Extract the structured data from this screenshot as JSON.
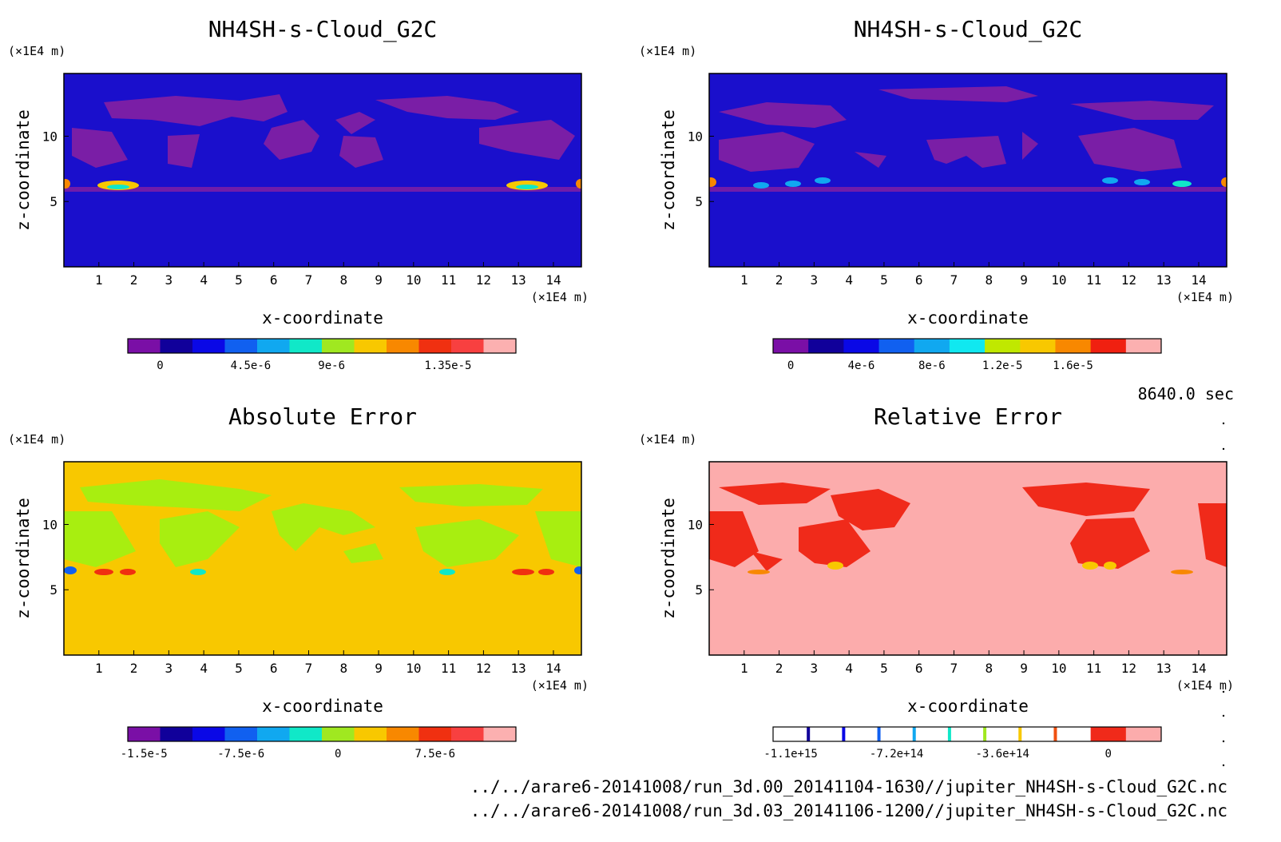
{
  "figure": {
    "timestamp": "8640.0 sec",
    "files": [
      "../../arare6-20141008/run_3d.00_20141104-1630//jupiter_NH4SH-s-Cloud_G2C.nc",
      "../../arare6-20141008/run_3d.03_20141106-1200//jupiter_NH4SH-s-Cloud_G2C.nc"
    ]
  },
  "chart_data": [
    {
      "type": "heatmap",
      "title": "NH4SH-s-Cloud_G2C",
      "xlabel": "x-coordinate",
      "ylabel": "z-coordinate",
      "xunit": "(×1E4 m)",
      "yunit": "(×1E4 m)",
      "xlim": [
        0,
        14.8
      ],
      "ylim": [
        0,
        14.8
      ],
      "xticks": [
        "1",
        "2",
        "3",
        "4",
        "5",
        "6",
        "7",
        "8",
        "9",
        "10",
        "11",
        "12",
        "13",
        "14"
      ],
      "yticks": [
        "5",
        "10"
      ],
      "background": "#1a0fcc",
      "patch_color": "#7a1ea6",
      "colorbar": {
        "colors": [
          "#7a0fa6",
          "#10009a",
          "#0a08e6",
          "#1060f0",
          "#10a8f0",
          "#10e8c8",
          "#a0e820",
          "#f8c800",
          "#f88800",
          "#f03010",
          "#f84040",
          "#fcb0b0"
        ],
        "tick_labels": [
          "0",
          "4.5e-6",
          "9e-6",
          "1.35e-5"
        ],
        "tick_index": [
          1,
          3.8,
          6.3,
          9.9
        ]
      }
    },
    {
      "type": "heatmap",
      "title": "NH4SH-s-Cloud_G2C",
      "xlabel": "x-coordinate",
      "ylabel": "z-coordinate",
      "xunit": "(×1E4 m)",
      "yunit": "(×1E4 m)",
      "xlim": [
        0,
        14.8
      ],
      "ylim": [
        0,
        14.8
      ],
      "xticks": [
        "1",
        "2",
        "3",
        "4",
        "5",
        "6",
        "7",
        "8",
        "9",
        "10",
        "11",
        "12",
        "13",
        "14"
      ],
      "yticks": [
        "5",
        "10"
      ],
      "background": "#1a0fcc",
      "patch_color": "#7a1ea6",
      "colorbar": {
        "colors": [
          "#7a0fa6",
          "#10009a",
          "#0a08e6",
          "#1060f0",
          "#10a8f0",
          "#10e8f0",
          "#c0e800",
          "#f8c800",
          "#f88800",
          "#f02010",
          "#fcb0b0"
        ],
        "tick_labels": [
          "0",
          "4e-6",
          "8e-6",
          "1.2e-5",
          "1.6e-5"
        ],
        "tick_index": [
          0.5,
          2.5,
          4.5,
          6.5,
          8.5
        ]
      }
    },
    {
      "type": "heatmap",
      "title": "Absolute Error",
      "xlabel": "x-coordinate",
      "ylabel": "z-coordinate",
      "xunit": "(×1E4 m)",
      "yunit": "(×1E4 m)",
      "xlim": [
        0,
        14.8
      ],
      "ylim": [
        0,
        14.8
      ],
      "xticks": [
        "1",
        "2",
        "3",
        "4",
        "5",
        "6",
        "7",
        "8",
        "9",
        "10",
        "11",
        "12",
        "13",
        "14"
      ],
      "yticks": [
        "5",
        "10"
      ],
      "background": "#f8c800",
      "patch_color": "#a8ee10",
      "colorbar": {
        "colors": [
          "#7a0fa6",
          "#10009a",
          "#0a08e6",
          "#1060f0",
          "#10a8f0",
          "#10e8c8",
          "#a0e820",
          "#f8c800",
          "#f88800",
          "#f03010",
          "#f84040",
          "#fcb0b0"
        ],
        "tick_labels": [
          "-1.5e-5",
          "-7.5e-6",
          "0",
          "7.5e-6"
        ],
        "tick_index": [
          0.5,
          3.5,
          6.5,
          9.5
        ]
      }
    },
    {
      "type": "heatmap",
      "title": "Relative Error",
      "xlabel": "x-coordinate",
      "ylabel": "z-coordinate",
      "xunit": "(×1E4 m)",
      "yunit": "(×1E4 m)",
      "xlim": [
        0,
        14.8
      ],
      "ylim": [
        0,
        14.8
      ],
      "xticks": [
        "1",
        "2",
        "3",
        "4",
        "5",
        "6",
        "7",
        "8",
        "9",
        "10",
        "11",
        "12",
        "13",
        "14"
      ],
      "yticks": [
        "5",
        "10"
      ],
      "background": "#fcacac",
      "patch_color": "#f02a1a",
      "colorbar": {
        "colors": [
          "#ffffff",
          "#ffffff",
          "#ffffff",
          "#ffffff",
          "#ffffff",
          "#ffffff",
          "#ffffff",
          "#ffffff",
          "#ffffff",
          "#f02a1a",
          "#fcacac"
        ],
        "stripes": [
          "#10009a",
          "#0a08e6",
          "#1060f0",
          "#10a8f0",
          "#10e8c8",
          "#a0e820",
          "#f8c800",
          "#f05010"
        ],
        "tick_labels": [
          "-1.1e+15",
          "-7.2e+14",
          "-3.6e+14",
          "0"
        ],
        "tick_index": [
          0.5,
          3.5,
          6.5,
          9.5
        ]
      }
    }
  ]
}
